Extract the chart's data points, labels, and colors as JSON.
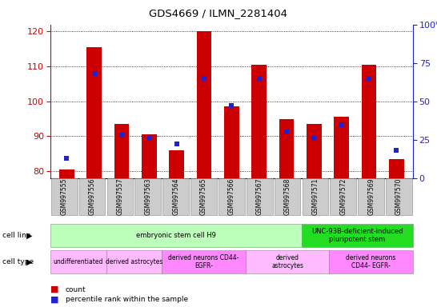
{
  "title": "GDS4669 / ILMN_2281404",
  "samples": [
    "GSM997555",
    "GSM997556",
    "GSM997557",
    "GSM997563",
    "GSM997564",
    "GSM997565",
    "GSM997566",
    "GSM997567",
    "GSM997568",
    "GSM997571",
    "GSM997572",
    "GSM997569",
    "GSM997570"
  ],
  "count_values": [
    80.5,
    115.5,
    93.5,
    90.5,
    86.0,
    120.0,
    98.5,
    110.5,
    95.0,
    93.5,
    95.5,
    110.5,
    83.5
  ],
  "percentile_values": [
    13,
    68,
    28,
    26,
    22,
    65,
    47,
    65,
    30,
    26,
    35,
    65,
    18
  ],
  "ylim_left": [
    78,
    122
  ],
  "ylim_right": [
    0,
    100
  ],
  "yticks_left": [
    80,
    90,
    100,
    110,
    120
  ],
  "yticks_right": [
    0,
    25,
    50,
    75,
    100
  ],
  "bar_color": "#cc0000",
  "dot_color": "#2222cc",
  "grid_color": "#000000",
  "cell_line_groups": [
    {
      "label": "embryonic stem cell H9",
      "start": 0,
      "end": 9,
      "color": "#bbffbb"
    },
    {
      "label": "UNC-93B-deficient-induced\npluripotent stem",
      "start": 9,
      "end": 13,
      "color": "#22dd22"
    }
  ],
  "cell_type_groups": [
    {
      "label": "undifferentiated",
      "start": 0,
      "end": 2,
      "color": "#ffbbff"
    },
    {
      "label": "derived astrocytes",
      "start": 2,
      "end": 4,
      "color": "#ffbbff"
    },
    {
      "label": "derived neurons CD44-\nEGFR-",
      "start": 4,
      "end": 7,
      "color": "#ff88ff"
    },
    {
      "label": "derived\nastrocytes",
      "start": 7,
      "end": 10,
      "color": "#ffbbff"
    },
    {
      "label": "derived neurons\nCD44- EGFR-",
      "start": 10,
      "end": 13,
      "color": "#ff88ff"
    }
  ],
  "legend_count_color": "#cc0000",
  "legend_pct_color": "#2222cc",
  "left_axis_color": "#cc0000",
  "right_axis_color": "#2222cc",
  "xticklabel_bg": "#cccccc",
  "fig_bg": "#ffffff"
}
